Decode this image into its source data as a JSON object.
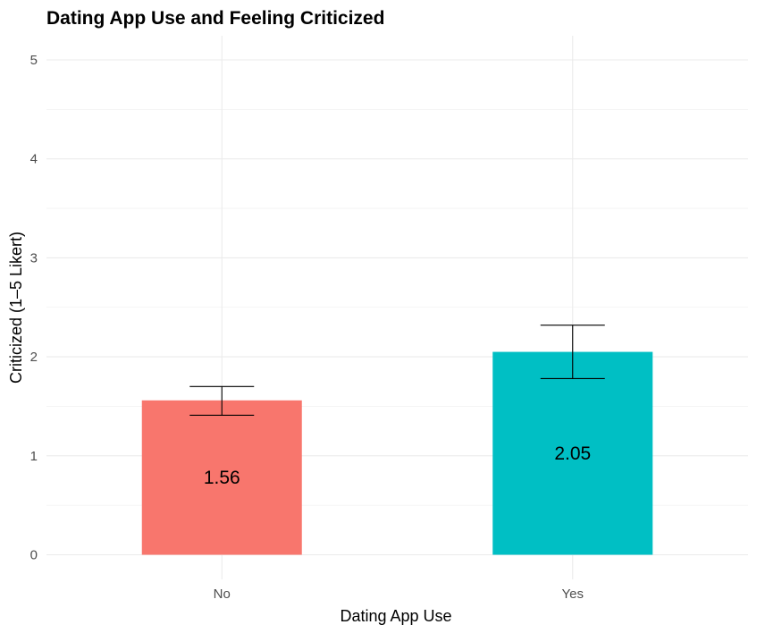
{
  "chart_data": {
    "type": "bar",
    "title": "Dating App Use and Feeling Criticized",
    "xlabel": "Dating App Use",
    "ylabel": "Criticized (1–5 Likert)",
    "categories": [
      "No",
      "Yes"
    ],
    "values": [
      1.56,
      2.05
    ],
    "value_labels": [
      "1.56",
      "2.05"
    ],
    "error_low": [
      1.41,
      1.78
    ],
    "error_high": [
      1.7,
      2.32
    ],
    "colors": [
      "#F8766D",
      "#00BFC4"
    ],
    "ylim": [
      0,
      5
    ],
    "yticks": [
      0,
      1,
      2,
      3,
      4,
      5
    ],
    "ytick_labels": [
      "0",
      "1",
      "2",
      "3",
      "4",
      "5"
    ],
    "grid": true,
    "legend": "none"
  }
}
